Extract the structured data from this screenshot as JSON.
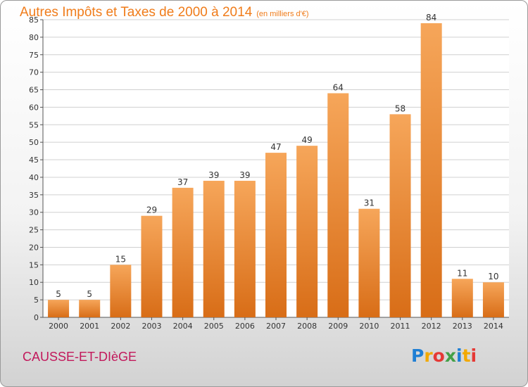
{
  "header": {
    "title": "Autres Impôts et Taxes de 2000 à 2014",
    "subtitle": "(en milliers d'€)"
  },
  "footer": {
    "commune": "CAUSSE-ET-DIèGE",
    "logo": "Proxiti"
  },
  "colors": {
    "accent": "#f07c1a",
    "bar_top": "#f6a65a",
    "bar_bottom": "#d86d17",
    "commune_text": "#c2185b"
  },
  "chart_data": {
    "type": "bar",
    "title": "Autres Impôts et Taxes de 2000 à 2014",
    "subtitle": "(en milliers d'€)",
    "categories": [
      "2000",
      "2001",
      "2002",
      "2003",
      "2004",
      "2005",
      "2006",
      "2007",
      "2008",
      "2009",
      "2010",
      "2011",
      "2012",
      "2013",
      "2014"
    ],
    "values": [
      5,
      5,
      15,
      29,
      37,
      39,
      39,
      47,
      49,
      64,
      31,
      58,
      84,
      11,
      10
    ],
    "ylim": [
      0,
      85
    ],
    "yticks": [
      0,
      5,
      10,
      15,
      20,
      25,
      30,
      35,
      40,
      45,
      50,
      55,
      60,
      65,
      70,
      75,
      80,
      85
    ],
    "grid": true,
    "legend": "none"
  }
}
